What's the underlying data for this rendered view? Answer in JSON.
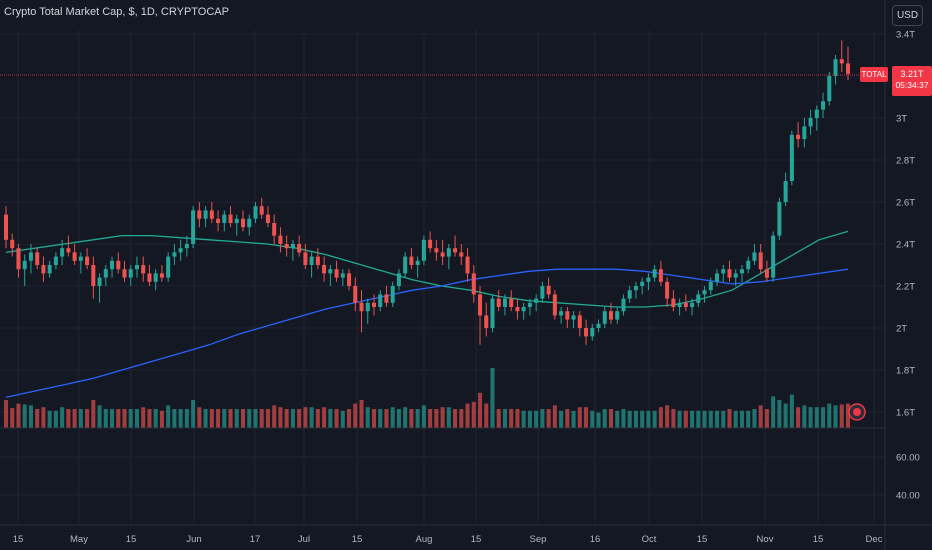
{
  "header": {
    "title": "Crypto Total Market Cap, $, 1D, CRYPTOCAP"
  },
  "currency_button": "USD",
  "last_price": {
    "symbol": "TOTAL",
    "value": "3.21T",
    "countdown": "05:34:37",
    "color": "#f23645"
  },
  "colors": {
    "up": "#26a69a",
    "down": "#ef5350",
    "ma_green": "#22ab94",
    "ma_blue": "#2962ff",
    "background": "#141823",
    "grid": "#1f2330",
    "text": "#b2b5be"
  },
  "chart_data": [
    {
      "type": "candlestick",
      "title": "Crypto Total Market Cap, $, 1D, CRYPTOCAP",
      "y_axis": {
        "ticks": [
          "3.4T",
          "3T",
          "2.8T",
          "2.6T",
          "2.4T",
          "2.2T",
          "2T",
          "1.8T",
          "1.6T"
        ],
        "unit": "T",
        "ylim": [
          1.58,
          3.42
        ]
      },
      "x_axis": {
        "ticks": [
          "15",
          "May",
          "15",
          "Jun",
          "17",
          "Jul",
          "15",
          "Aug",
          "15",
          "Sep",
          "16",
          "Oct",
          "15",
          "Nov",
          "15",
          "Dec"
        ]
      },
      "series": [
        {
          "kind": "ohlc",
          "values": [
            [
              2.54,
              2.58,
              2.38,
              2.42
            ],
            [
              2.42,
              2.45,
              2.34,
              2.38
            ],
            [
              2.38,
              2.4,
              2.24,
              2.28
            ],
            [
              2.28,
              2.35,
              2.2,
              2.32
            ],
            [
              2.32,
              2.4,
              2.26,
              2.36
            ],
            [
              2.36,
              2.38,
              2.28,
              2.3
            ],
            [
              2.3,
              2.34,
              2.22,
              2.26
            ],
            [
              2.26,
              2.32,
              2.24,
              2.3
            ],
            [
              2.3,
              2.36,
              2.28,
              2.34
            ],
            [
              2.34,
              2.42,
              2.3,
              2.38
            ],
            [
              2.38,
              2.44,
              2.34,
              2.36
            ],
            [
              2.36,
              2.4,
              2.3,
              2.32
            ],
            [
              2.32,
              2.36,
              2.26,
              2.34
            ],
            [
              2.34,
              2.38,
              2.28,
              2.3
            ],
            [
              2.3,
              2.34,
              2.14,
              2.2
            ],
            [
              2.2,
              2.26,
              2.12,
              2.24
            ],
            [
              2.24,
              2.3,
              2.2,
              2.28
            ],
            [
              2.28,
              2.34,
              2.24,
              2.32
            ],
            [
              2.32,
              2.36,
              2.26,
              2.28
            ],
            [
              2.28,
              2.32,
              2.22,
              2.24
            ],
            [
              2.24,
              2.3,
              2.2,
              2.28
            ],
            [
              2.28,
              2.34,
              2.24,
              2.3
            ],
            [
              2.3,
              2.34,
              2.22,
              2.26
            ],
            [
              2.26,
              2.3,
              2.2,
              2.22
            ],
            [
              2.22,
              2.28,
              2.18,
              2.26
            ],
            [
              2.26,
              2.3,
              2.22,
              2.24
            ],
            [
              2.24,
              2.36,
              2.22,
              2.34
            ],
            [
              2.34,
              2.4,
              2.3,
              2.36
            ],
            [
              2.36,
              2.42,
              2.32,
              2.38
            ],
            [
              2.38,
              2.44,
              2.34,
              2.4
            ],
            [
              2.4,
              2.58,
              2.38,
              2.56
            ],
            [
              2.56,
              2.6,
              2.48,
              2.52
            ],
            [
              2.52,
              2.58,
              2.48,
              2.56
            ],
            [
              2.56,
              2.6,
              2.5,
              2.52
            ],
            [
              2.52,
              2.56,
              2.46,
              2.5
            ],
            [
              2.5,
              2.56,
              2.46,
              2.54
            ],
            [
              2.54,
              2.58,
              2.48,
              2.5
            ],
            [
              2.5,
              2.54,
              2.44,
              2.52
            ],
            [
              2.52,
              2.56,
              2.46,
              2.48
            ],
            [
              2.48,
              2.54,
              2.44,
              2.52
            ],
            [
              2.52,
              2.6,
              2.5,
              2.58
            ],
            [
              2.58,
              2.62,
              2.52,
              2.54
            ],
            [
              2.54,
              2.58,
              2.48,
              2.5
            ],
            [
              2.5,
              2.54,
              2.4,
              2.44
            ],
            [
              2.44,
              2.48,
              2.36,
              2.4
            ],
            [
              2.4,
              2.44,
              2.34,
              2.38
            ],
            [
              2.38,
              2.42,
              2.32,
              2.4
            ],
            [
              2.4,
              2.44,
              2.34,
              2.36
            ],
            [
              2.36,
              2.4,
              2.28,
              2.3
            ],
            [
              2.3,
              2.36,
              2.24,
              2.34
            ],
            [
              2.34,
              2.38,
              2.28,
              2.3
            ],
            [
              2.3,
              2.34,
              2.22,
              2.26
            ],
            [
              2.26,
              2.3,
              2.2,
              2.28
            ],
            [
              2.28,
              2.32,
              2.22,
              2.24
            ],
            [
              2.24,
              2.28,
              2.2,
              2.26
            ],
            [
              2.26,
              2.28,
              2.18,
              2.2
            ],
            [
              2.2,
              2.24,
              2.08,
              2.12
            ],
            [
              2.12,
              2.18,
              1.98,
              2.08
            ],
            [
              2.08,
              2.14,
              2.02,
              2.12
            ],
            [
              2.12,
              2.16,
              2.06,
              2.1
            ],
            [
              2.1,
              2.18,
              2.08,
              2.16
            ],
            [
              2.16,
              2.2,
              2.1,
              2.12
            ],
            [
              2.12,
              2.22,
              2.1,
              2.2
            ],
            [
              2.2,
              2.28,
              2.18,
              2.26
            ],
            [
              2.26,
              2.36,
              2.24,
              2.34
            ],
            [
              2.34,
              2.38,
              2.28,
              2.3
            ],
            [
              2.3,
              2.34,
              2.24,
              2.32
            ],
            [
              2.32,
              2.44,
              2.3,
              2.42
            ],
            [
              2.42,
              2.46,
              2.36,
              2.38
            ],
            [
              2.38,
              2.42,
              2.32,
              2.36
            ],
            [
              2.36,
              2.42,
              2.3,
              2.34
            ],
            [
              2.34,
              2.4,
              2.28,
              2.38
            ],
            [
              2.38,
              2.44,
              2.34,
              2.36
            ],
            [
              2.36,
              2.4,
              2.3,
              2.34
            ],
            [
              2.34,
              2.38,
              2.22,
              2.26
            ],
            [
              2.26,
              2.3,
              2.12,
              2.16
            ],
            [
              2.16,
              2.2,
              1.92,
              2.06
            ],
            [
              2.06,
              2.12,
              1.96,
              2.0
            ],
            [
              2.0,
              2.16,
              1.98,
              2.14
            ],
            [
              2.14,
              2.18,
              2.08,
              2.1
            ],
            [
              2.1,
              2.16,
              2.06,
              2.14
            ],
            [
              2.14,
              2.18,
              2.08,
              2.1
            ],
            [
              2.1,
              2.14,
              2.04,
              2.08
            ],
            [
              2.08,
              2.12,
              2.04,
              2.1
            ],
            [
              2.1,
              2.14,
              2.06,
              2.12
            ],
            [
              2.12,
              2.16,
              2.08,
              2.14
            ],
            [
              2.14,
              2.22,
              2.12,
              2.2
            ],
            [
              2.2,
              2.24,
              2.14,
              2.16
            ],
            [
              2.16,
              2.18,
              2.04,
              2.06
            ],
            [
              2.06,
              2.1,
              2.02,
              2.08
            ],
            [
              2.08,
              2.1,
              2.0,
              2.04
            ],
            [
              2.04,
              2.08,
              2.0,
              2.06
            ],
            [
              2.06,
              2.08,
              1.96,
              2.0
            ],
            [
              2.0,
              2.04,
              1.92,
              1.96
            ],
            [
              1.96,
              2.02,
              1.94,
              2.0
            ],
            [
              2.0,
              2.04,
              1.98,
              2.02
            ],
            [
              2.02,
              2.1,
              2.0,
              2.08
            ],
            [
              2.08,
              2.12,
              2.02,
              2.04
            ],
            [
              2.04,
              2.1,
              2.02,
              2.08
            ],
            [
              2.08,
              2.16,
              2.06,
              2.14
            ],
            [
              2.14,
              2.2,
              2.12,
              2.18
            ],
            [
              2.18,
              2.22,
              2.14,
              2.2
            ],
            [
              2.2,
              2.24,
              2.16,
              2.22
            ],
            [
              2.22,
              2.26,
              2.18,
              2.24
            ],
            [
              2.24,
              2.3,
              2.22,
              2.28
            ],
            [
              2.28,
              2.32,
              2.2,
              2.22
            ],
            [
              2.22,
              2.24,
              2.1,
              2.14
            ],
            [
              2.14,
              2.18,
              2.08,
              2.1
            ],
            [
              2.1,
              2.14,
              2.06,
              2.12
            ],
            [
              2.12,
              2.16,
              2.08,
              2.1
            ],
            [
              2.1,
              2.14,
              2.06,
              2.12
            ],
            [
              2.12,
              2.18,
              2.1,
              2.16
            ],
            [
              2.16,
              2.2,
              2.12,
              2.18
            ],
            [
              2.18,
              2.24,
              2.16,
              2.22
            ],
            [
              2.22,
              2.28,
              2.2,
              2.26
            ],
            [
              2.26,
              2.3,
              2.22,
              2.28
            ],
            [
              2.28,
              2.32,
              2.22,
              2.24
            ],
            [
              2.24,
              2.28,
              2.2,
              2.26
            ],
            [
              2.26,
              2.3,
              2.22,
              2.28
            ],
            [
              2.28,
              2.34,
              2.26,
              2.32
            ],
            [
              2.32,
              2.4,
              2.3,
              2.36
            ],
            [
              2.36,
              2.4,
              2.26,
              2.28
            ],
            [
              2.28,
              2.32,
              2.22,
              2.24
            ],
            [
              2.24,
              2.46,
              2.22,
              2.44
            ],
            [
              2.44,
              2.62,
              2.42,
              2.6
            ],
            [
              2.6,
              2.74,
              2.58,
              2.7
            ],
            [
              2.7,
              2.94,
              2.68,
              2.92
            ],
            [
              2.92,
              2.98,
              2.86,
              2.9
            ],
            [
              2.9,
              3.0,
              2.86,
              2.96
            ],
            [
              2.96,
              3.04,
              2.92,
              3.0
            ],
            [
              3.0,
              3.06,
              2.94,
              3.04
            ],
            [
              3.04,
              3.12,
              3.0,
              3.08
            ],
            [
              3.08,
              3.22,
              3.06,
              3.2
            ],
            [
              3.2,
              3.3,
              3.16,
              3.28
            ],
            [
              3.28,
              3.37,
              3.22,
              3.26
            ],
            [
              3.26,
              3.34,
              3.18,
              3.21
            ]
          ]
        },
        {
          "name": "",
          "kind": "moving-average",
          "color": "#22ab94",
          "values": [
            2.36,
            2.38,
            2.4,
            2.42,
            2.44,
            2.44,
            2.43,
            2.42,
            2.41,
            2.4,
            2.38,
            2.35,
            2.31,
            2.27,
            2.23,
            2.2,
            2.18,
            2.15,
            2.13,
            2.12,
            2.11,
            2.1,
            2.1,
            2.11,
            2.14,
            2.18,
            2.26,
            2.34,
            2.42,
            2.46
          ]
        },
        {
          "name": "",
          "kind": "moving-average",
          "color": "#2962ff",
          "values": [
            1.67,
            1.7,
            1.73,
            1.76,
            1.8,
            1.84,
            1.88,
            1.92,
            1.97,
            2.01,
            2.05,
            2.09,
            2.12,
            2.15,
            2.18,
            2.2,
            2.23,
            2.25,
            2.27,
            2.28,
            2.28,
            2.28,
            2.27,
            2.25,
            2.23,
            2.21,
            2.22,
            2.24,
            2.26,
            2.28
          ]
        }
      ]
    },
    {
      "type": "bar",
      "name": "Volume",
      "y_axis": {
        "ticks": [
          "60.00",
          "40.00"
        ]
      }
    }
  ]
}
